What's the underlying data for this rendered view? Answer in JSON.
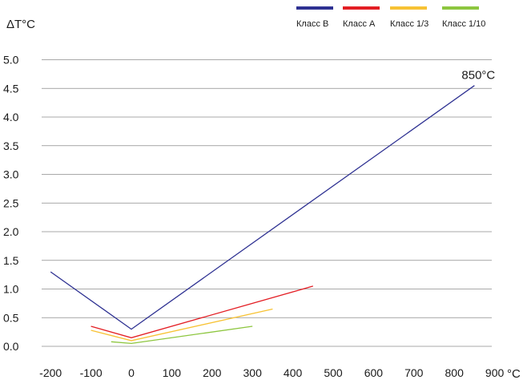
{
  "chart_data": {
    "type": "line",
    "title": "",
    "ylabel": "ΔT°C",
    "xlabel": "°C",
    "xlim": [
      -200,
      900
    ],
    "ylim": [
      0,
      5
    ],
    "x_ticks": [
      -200,
      -100,
      0,
      100,
      200,
      300,
      400,
      500,
      600,
      700,
      800,
      900
    ],
    "y_ticks": [
      "0.0",
      "0.5",
      "1.0",
      "1.5",
      "2.0",
      "2.5",
      "3.0",
      "3.5",
      "4.0",
      "4.5",
      "5.0"
    ],
    "grid": "horizontal",
    "legend_position": "top-right",
    "series": [
      {
        "name": "Класс B",
        "color": "#2e3192",
        "points": [
          [
            -200,
            1.3
          ],
          [
            0,
            0.3
          ],
          [
            850,
            4.55
          ]
        ]
      },
      {
        "name": "Класс A",
        "color": "#e31e24",
        "points": [
          [
            -100,
            0.35
          ],
          [
            0,
            0.15
          ],
          [
            450,
            1.05
          ]
        ]
      },
      {
        "name": "Класс 1/3",
        "color": "#f7c234",
        "points": [
          [
            -100,
            0.28
          ],
          [
            0,
            0.1
          ],
          [
            350,
            0.65
          ]
        ]
      },
      {
        "name": "Класс 1/10",
        "color": "#8dc63f",
        "points": [
          [
            -50,
            0.08
          ],
          [
            0,
            0.05
          ],
          [
            300,
            0.35
          ]
        ]
      }
    ],
    "annotations": [
      {
        "text": "850°C",
        "x": 850,
        "y": 4.55
      }
    ]
  }
}
